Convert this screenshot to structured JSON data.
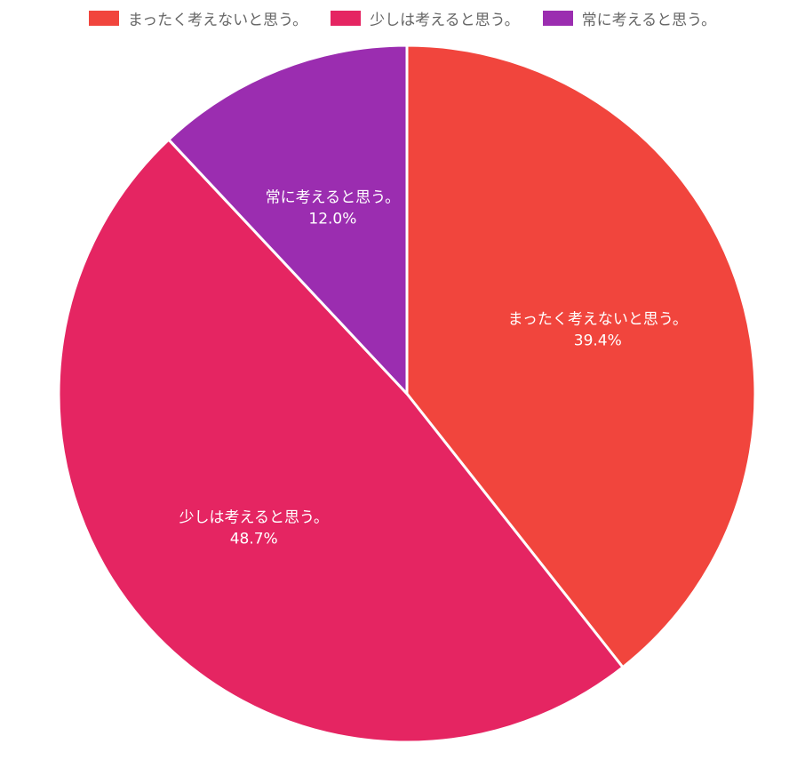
{
  "chart_data": {
    "type": "pie",
    "title": "",
    "legend_position": "top",
    "slices": [
      {
        "label": "まったく考えないと思う。",
        "value": 39.4,
        "value_label": "39.4%",
        "color": "#f1453d"
      },
      {
        "label": "少しは考えると思う。",
        "value": 48.7,
        "value_label": "48.7%",
        "color": "#e52562"
      },
      {
        "label": "常に考えると思う。",
        "value": 12.0,
        "value_label": "12.0%",
        "color": "#9b2db0"
      }
    ]
  }
}
